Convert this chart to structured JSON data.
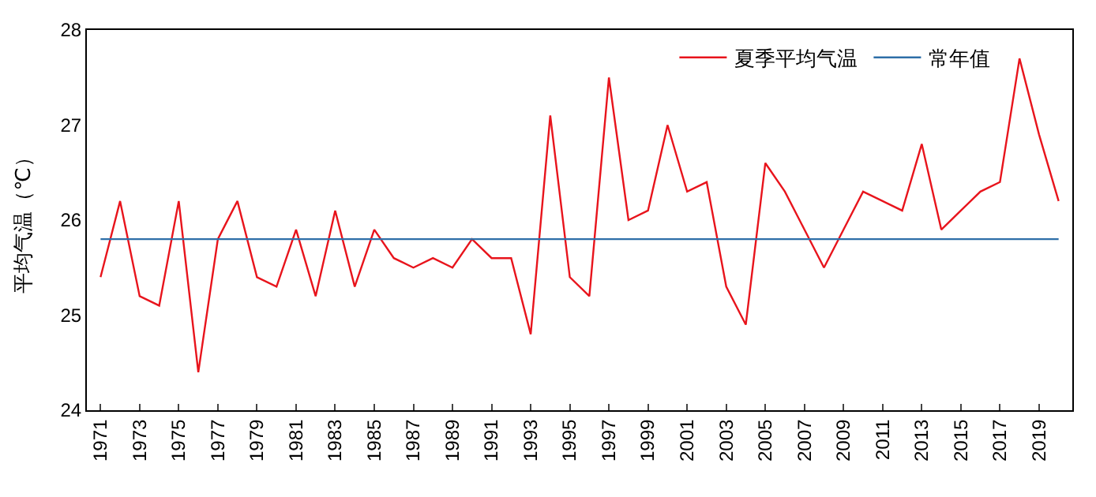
{
  "chart_data": {
    "type": "line",
    "ylabel": "平均气温（℃）",
    "categories": [
      "1971",
      null,
      "1973",
      null,
      "1975",
      null,
      "1977",
      null,
      "1979",
      null,
      "1981",
      null,
      "1983",
      null,
      "1985",
      null,
      "1987",
      null,
      "1989",
      null,
      "1991",
      null,
      "1993",
      null,
      "1995",
      null,
      "1997",
      null,
      "1999",
      null,
      "2001",
      null,
      "2003",
      null,
      "2005",
      null,
      "2007",
      null,
      "2009",
      null,
      "2011",
      null,
      "2013",
      null,
      "2015",
      null,
      "2017",
      null,
      "2019",
      null
    ],
    "series": [
      {
        "name": "夏季平均气温",
        "color": "#e8141c",
        "values": [
          25.4,
          26.2,
          25.2,
          25.1,
          26.2,
          24.4,
          25.8,
          26.2,
          25.4,
          25.3,
          25.9,
          25.2,
          26.1,
          25.3,
          25.9,
          25.6,
          25.5,
          25.6,
          25.5,
          25.8,
          25.6,
          25.6,
          24.8,
          27.1,
          25.4,
          25.2,
          27.5,
          26.0,
          26.1,
          27.0,
          26.3,
          26.4,
          25.3,
          24.9,
          26.6,
          26.3,
          25.9,
          25.5,
          25.9,
          26.3,
          26.2,
          26.1,
          26.8,
          25.9,
          26.1,
          26.3,
          26.4,
          27.7,
          26.9,
          26.2
        ]
      }
    ],
    "ref_lines": [
      {
        "axis": "y",
        "value": 25.8,
        "label": "常年值",
        "color": "#2e6fa8"
      }
    ],
    "ylim": [
      24,
      28
    ],
    "yticks": [
      24,
      25,
      26,
      27,
      28
    ],
    "legend": "top right",
    "marker": "none",
    "line_style": "solid"
  }
}
